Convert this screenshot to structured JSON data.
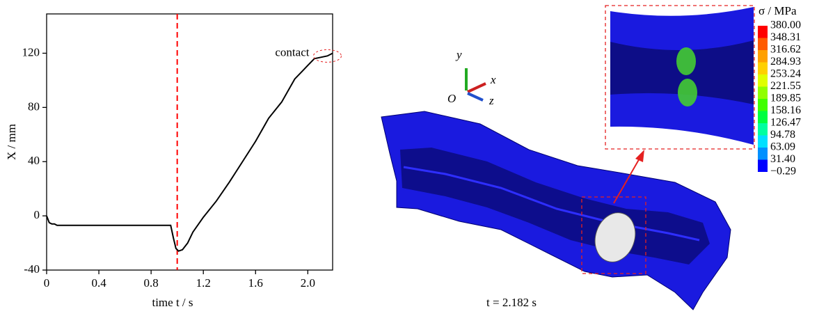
{
  "chart_data": {
    "type": "line",
    "x_label": "time t / s",
    "y_label": "X / mm",
    "xlim": [
      0,
      2.19
    ],
    "ylim": [
      -40,
      149
    ],
    "xticks": [
      0,
      0.4,
      0.8,
      1.2,
      1.6,
      {
        "value": 2,
        "label": "2.0"
      }
    ],
    "yticks": [
      -40,
      0,
      40,
      80,
      120
    ],
    "vline": {
      "x": 1,
      "color": "#ff0000"
    },
    "annotation": "contact",
    "x": [
      0,
      0.02,
      0.04,
      0.06,
      0.08,
      0.2,
      0.5,
      0.8,
      0.95,
      0.97,
      0.99,
      1.01,
      1.04,
      1.08,
      1.12,
      1.2,
      1.3,
      1.4,
      1.5,
      1.6,
      1.7,
      1.8,
      1.9,
      1.96,
      2.0,
      2.05,
      2.1,
      2.15,
      2.19
    ],
    "series": [
      {
        "color": "#000000",
        "values": [
          0,
          -5,
          -6,
          -6,
          -7,
          -7,
          -7,
          -7,
          -7,
          -16,
          -24,
          -26,
          -25,
          -20,
          -12,
          -1,
          11,
          25,
          40,
          55,
          72,
          84,
          101,
          107,
          111,
          116,
          117,
          118,
          120
        ]
      }
    ]
  },
  "model": {
    "axis_y": "y",
    "axis_x": "x",
    "axis_origin": "O",
    "axis_z": "z",
    "time_label": "t = 2.182 s",
    "legend_title": "σ / MPa",
    "legend_labels": [
      "380.00",
      "348.31",
      "316.62",
      "284.93",
      "253.24",
      "221.55",
      "189.85",
      "158.16",
      "126.47",
      "94.78",
      "63.09",
      "31.40",
      "−0.29"
    ]
  }
}
